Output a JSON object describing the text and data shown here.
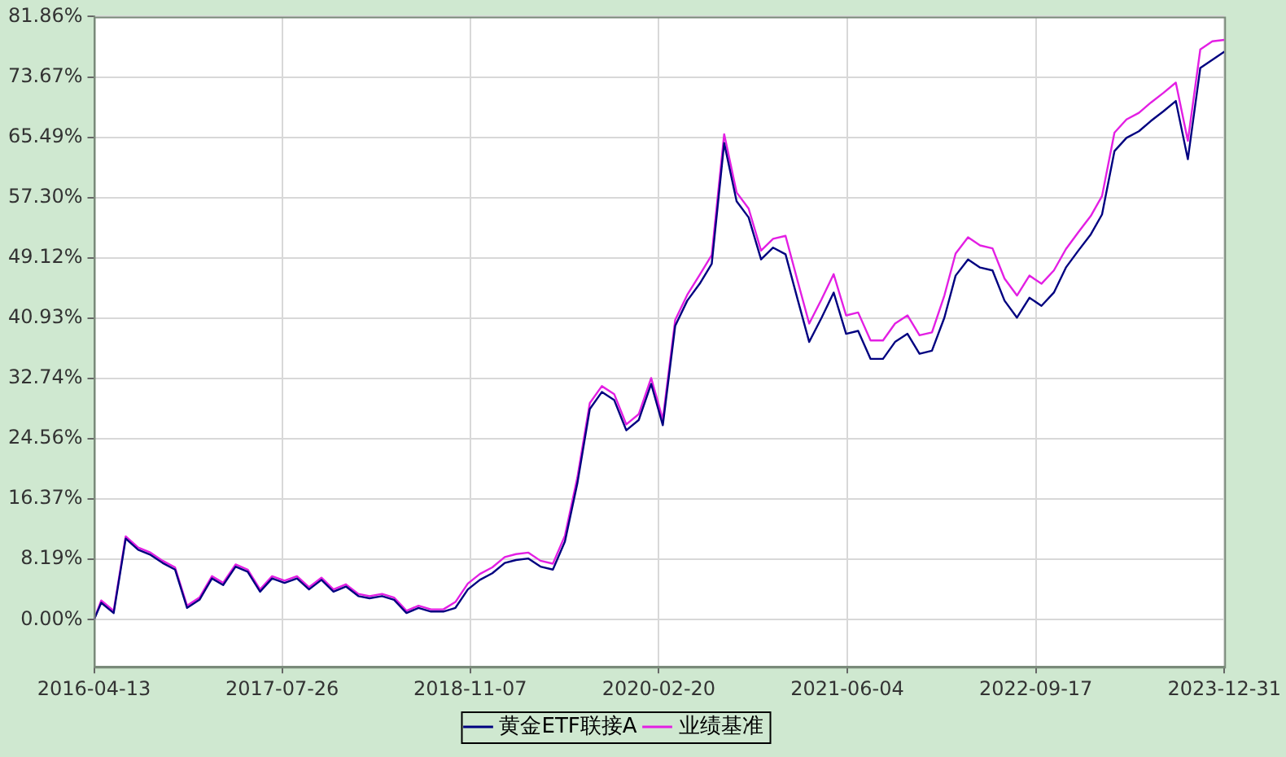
{
  "chart_data": {
    "type": "line",
    "x": [
      "2016-04-13",
      "2016-05",
      "2016-06",
      "2016-07",
      "2016-08",
      "2016-09",
      "2016-10",
      "2016-11",
      "2016-12",
      "2017-01",
      "2017-02",
      "2017-03",
      "2017-04",
      "2017-05",
      "2017-06",
      "2017-07",
      "2017-08",
      "2017-09",
      "2017-10",
      "2017-11",
      "2017-12",
      "2018-01",
      "2018-02",
      "2018-03",
      "2018-04",
      "2018-05",
      "2018-06",
      "2018-07",
      "2018-08",
      "2018-09",
      "2018-10",
      "2018-11",
      "2018-12",
      "2019-01",
      "2019-02",
      "2019-03",
      "2019-04",
      "2019-05",
      "2019-06",
      "2019-07",
      "2019-08",
      "2019-09",
      "2019-10",
      "2019-11",
      "2019-12",
      "2020-01",
      "2020-02",
      "2020-03",
      "2020-04",
      "2020-05",
      "2020-06",
      "2020-07",
      "2020-08",
      "2020-09",
      "2020-10",
      "2020-11",
      "2020-12",
      "2021-01",
      "2021-02",
      "2021-03",
      "2021-04",
      "2021-05",
      "2021-06",
      "2021-07",
      "2021-08",
      "2021-09",
      "2021-10",
      "2021-11",
      "2021-12",
      "2022-01",
      "2022-02",
      "2022-03",
      "2022-04",
      "2022-05",
      "2022-06",
      "2022-07",
      "2022-08",
      "2022-09",
      "2022-10",
      "2022-11",
      "2022-12",
      "2023-01",
      "2023-02",
      "2023-03",
      "2023-04",
      "2023-05",
      "2023-06",
      "2023-07",
      "2023-08",
      "2023-09",
      "2023-10",
      "2023-11",
      "2023-12",
      "2023-12-31"
    ],
    "series": [
      {
        "name": "黄金ETF联接A",
        "color": "#000080",
        "values": [
          0,
          2.3,
          0.9,
          11.0,
          9.5,
          8.8,
          7.7,
          6.8,
          1.6,
          2.7,
          5.6,
          4.7,
          7.2,
          6.5,
          3.8,
          5.6,
          5.0,
          5.6,
          4.1,
          5.4,
          3.8,
          4.5,
          3.2,
          2.9,
          3.2,
          2.7,
          0.9,
          1.6,
          1.1,
          1.1,
          1.6,
          4.1,
          5.4,
          6.3,
          7.7,
          8.1,
          8.3,
          7.2,
          6.8,
          10.6,
          18.5,
          28.6,
          30.9,
          29.8,
          25.7,
          27.1,
          32.0,
          26.4,
          39.9,
          43.3,
          45.6,
          48.3,
          64.7,
          56.8,
          54.6,
          48.9,
          50.5,
          49.6,
          43.3,
          37.7,
          41.0,
          44.4,
          38.8,
          39.2,
          35.4,
          35.4,
          37.7,
          38.8,
          36.1,
          36.5,
          41.0,
          46.7,
          48.9,
          47.8,
          47.4,
          43.3,
          41.0,
          43.7,
          42.6,
          44.4,
          47.8,
          50.1,
          52.3,
          55.0,
          63.6,
          65.4,
          66.3,
          67.7,
          69.0,
          70.4,
          62.5,
          74.9,
          76.0,
          77.1
        ]
      },
      {
        "name": "业绩基准",
        "color": "#e31fe3",
        "values": [
          0,
          2.6,
          1.2,
          11.3,
          9.8,
          9.1,
          8.0,
          7.1,
          1.9,
          3.0,
          5.9,
          5.0,
          7.5,
          6.8,
          4.1,
          5.9,
          5.3,
          5.9,
          4.4,
          5.7,
          4.1,
          4.8,
          3.5,
          3.2,
          3.5,
          3.0,
          1.2,
          1.9,
          1.4,
          1.4,
          2.4,
          4.9,
          6.2,
          7.1,
          8.5,
          8.9,
          9.1,
          8.0,
          7.6,
          11.4,
          19.3,
          29.4,
          31.7,
          30.6,
          26.5,
          27.9,
          32.8,
          27.2,
          40.7,
          44.1,
          46.8,
          49.5,
          65.9,
          58.0,
          55.8,
          50.1,
          51.7,
          52.1,
          45.8,
          40.2,
          43.5,
          46.9,
          41.3,
          41.7,
          37.9,
          37.9,
          40.2,
          41.3,
          38.6,
          39.0,
          44.0,
          49.7,
          51.9,
          50.8,
          50.4,
          46.3,
          44.0,
          46.7,
          45.6,
          47.4,
          50.3,
          52.6,
          54.8,
          57.5,
          66.1,
          67.9,
          68.8,
          70.2,
          71.5,
          72.9,
          65.0,
          77.4,
          78.5,
          78.7
        ]
      }
    ],
    "xlim": [
      "2016-04-13",
      "2023-12-31"
    ],
    "xticks": [
      "2016-04-13",
      "2017-07-26",
      "2018-11-07",
      "2020-02-20",
      "2021-06-04",
      "2022-09-17",
      "2023-12-31"
    ],
    "ylim": [
      -6.4,
      81.86
    ],
    "yticks": [
      {
        "value": 0,
        "label": "0.00%"
      },
      {
        "value": 8.19,
        "label": "8.19%"
      },
      {
        "value": 16.37,
        "label": "16.37%"
      },
      {
        "value": 24.56,
        "label": "24.56%"
      },
      {
        "value": 32.74,
        "label": "32.74%"
      },
      {
        "value": 40.93,
        "label": "40.93%"
      },
      {
        "value": 49.12,
        "label": "49.12%"
      },
      {
        "value": 57.3,
        "label": "57.30%"
      },
      {
        "value": 65.49,
        "label": "65.49%"
      },
      {
        "value": 73.67,
        "label": "73.67%"
      },
      {
        "value": 81.86,
        "label": "81.86%"
      }
    ],
    "grid": true,
    "legend": "bottom",
    "marker": "none",
    "line_style": "solid"
  }
}
